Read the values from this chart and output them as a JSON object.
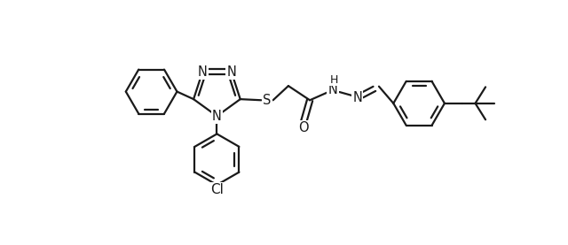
{
  "background_color": "#ffffff",
  "line_color": "#1a1a1a",
  "line_width": 1.6,
  "font_size": 10.5,
  "fig_width": 6.4,
  "fig_height": 2.77,
  "dpi": 100,
  "xlim": [
    0.3,
    8.8
  ],
  "ylim": [
    0.5,
    4.2
  ]
}
